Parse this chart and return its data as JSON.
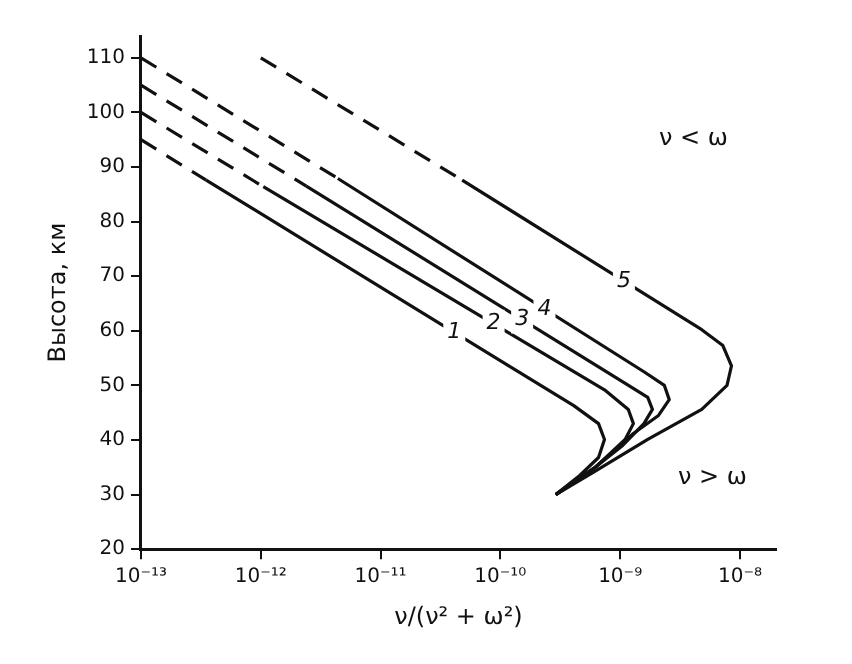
{
  "chart_data": {
    "type": "line",
    "xlabel": "ν/(ν² + ω²)",
    "ylabel": "Высота, км",
    "log": "x",
    "grid": false,
    "legend": false,
    "marker": "none",
    "xlim": [
      1e-13,
      2e-08
    ],
    "xticks": [
      {
        "value": 1e-13,
        "label": "10⁻¹³"
      },
      {
        "value": 1e-12,
        "label": "10⁻¹²"
      },
      {
        "value": 1e-11,
        "label": "10⁻¹¹"
      },
      {
        "value": 1e-10,
        "label": "10⁻¹⁰"
      },
      {
        "value": 1e-09,
        "label": "10⁻⁹"
      },
      {
        "value": 1e-08,
        "label": "10⁻⁸"
      }
    ],
    "ylim": [
      20,
      114
    ],
    "yticks": [
      20,
      30,
      40,
      50,
      60,
      70,
      80,
      90,
      100,
      110
    ],
    "annotations": [
      "ν < ω",
      "ν > ω"
    ],
    "series": [
      {
        "color": "#111111",
        "line_style": "dashed",
        "x": [
          1e-13,
          3.5e-13
        ],
        "values": [
          95,
          87.6
        ]
      },
      {
        "name": "1",
        "color": "#111111",
        "line_style": "solid",
        "x": [
          3.5e-13,
          4.1e-10,
          6.6e-10,
          7.4e-10,
          6.6e-10,
          4.6e-10,
          2.9e-10
        ],
        "values": [
          87.6,
          46.3,
          43,
          40.1,
          36.8,
          33.5,
          30
        ]
      },
      {
        "color": "#111111",
        "line_style": "dashed",
        "x": [
          1e-13,
          1.05e-12
        ],
        "values": [
          100,
          86.4
        ]
      },
      {
        "name": "2",
        "color": "#111111",
        "line_style": "solid",
        "x": [
          1.05e-12,
          7.4e-10,
          1.17e-09,
          1.29e-09,
          1.1e-09,
          6.2e-10,
          2.9e-10
        ],
        "values": [
          86.4,
          49.2,
          45.6,
          43,
          40.1,
          35,
          30
        ]
      },
      {
        "color": "#111111",
        "line_style": "dashed",
        "x": [
          1e-13,
          2.4e-12
        ],
        "values": [
          105,
          86.5
        ]
      },
      {
        "name": "3",
        "color": "#111111",
        "line_style": "solid",
        "x": [
          2.4e-12,
          1.12e-09,
          1.7e-09,
          1.86e-09,
          1.58e-09,
          1.05e-09,
          6.2e-10,
          2.9e-10
        ],
        "values": [
          86.5,
          50.3,
          47.8,
          45.6,
          43,
          39,
          35,
          30
        ]
      },
      {
        "color": "#111111",
        "line_style": "dashed",
        "x": [
          1e-13,
          4.4e-12
        ],
        "values": [
          110,
          87.9
        ]
      },
      {
        "name": "4",
        "color": "#111111",
        "line_style": "solid",
        "x": [
          4.4e-12,
          1.58e-09,
          2.34e-09,
          2.57e-09,
          2.09e-09,
          1.29e-09,
          6.2e-10,
          2.9e-10
        ],
        "values": [
          87.9,
          52.5,
          50,
          47.4,
          44.5,
          41.2,
          35,
          30
        ]
      },
      {
        "color": "#111111",
        "line_style": "dashed",
        "x": [
          1e-12,
          4.8e-11
        ],
        "values": [
          110,
          87.6
        ]
      },
      {
        "name": "5",
        "color": "#111111",
        "line_style": "solid",
        "x": [
          4.8e-11,
          4.8e-09,
          7.2e-09,
          8.5e-09,
          7.8e-09,
          4.8e-09,
          1.7e-09,
          6.2e-10,
          2.9e-10
        ],
        "values": [
          87.6,
          60.2,
          57.3,
          53.6,
          50,
          45.6,
          40.1,
          34.3,
          30
        ]
      }
    ]
  }
}
